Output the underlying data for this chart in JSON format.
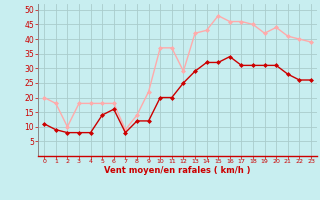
{
  "hours": [
    0,
    1,
    2,
    3,
    4,
    5,
    6,
    7,
    8,
    9,
    10,
    11,
    12,
    13,
    14,
    15,
    16,
    17,
    18,
    19,
    20,
    21,
    22,
    23
  ],
  "wind_mean": [
    11,
    9,
    8,
    8,
    8,
    14,
    16,
    8,
    12,
    12,
    20,
    20,
    25,
    29,
    32,
    32,
    34,
    31,
    31,
    31,
    31,
    28,
    26,
    26
  ],
  "wind_gust": [
    20,
    18,
    10,
    18,
    18,
    18,
    18,
    9,
    14,
    22,
    37,
    37,
    29,
    42,
    43,
    48,
    46,
    46,
    45,
    42,
    44,
    41,
    40,
    39
  ],
  "mean_color": "#cc0000",
  "gust_color": "#ffaaaa",
  "bg_color": "#c8eef0",
  "grid_color": "#aacccc",
  "xlabel": "Vent moyen/en rafales ( km/h )",
  "xlabel_color": "#cc0000",
  "tick_color": "#cc0000",
  "ylim": [
    0,
    52
  ],
  "yticks": [
    5,
    10,
    15,
    20,
    25,
    30,
    35,
    40,
    45,
    50
  ],
  "xlim": [
    -0.5,
    23.5
  ],
  "left_spine_color": "#888888",
  "bottom_spine_color": "#cc0000"
}
